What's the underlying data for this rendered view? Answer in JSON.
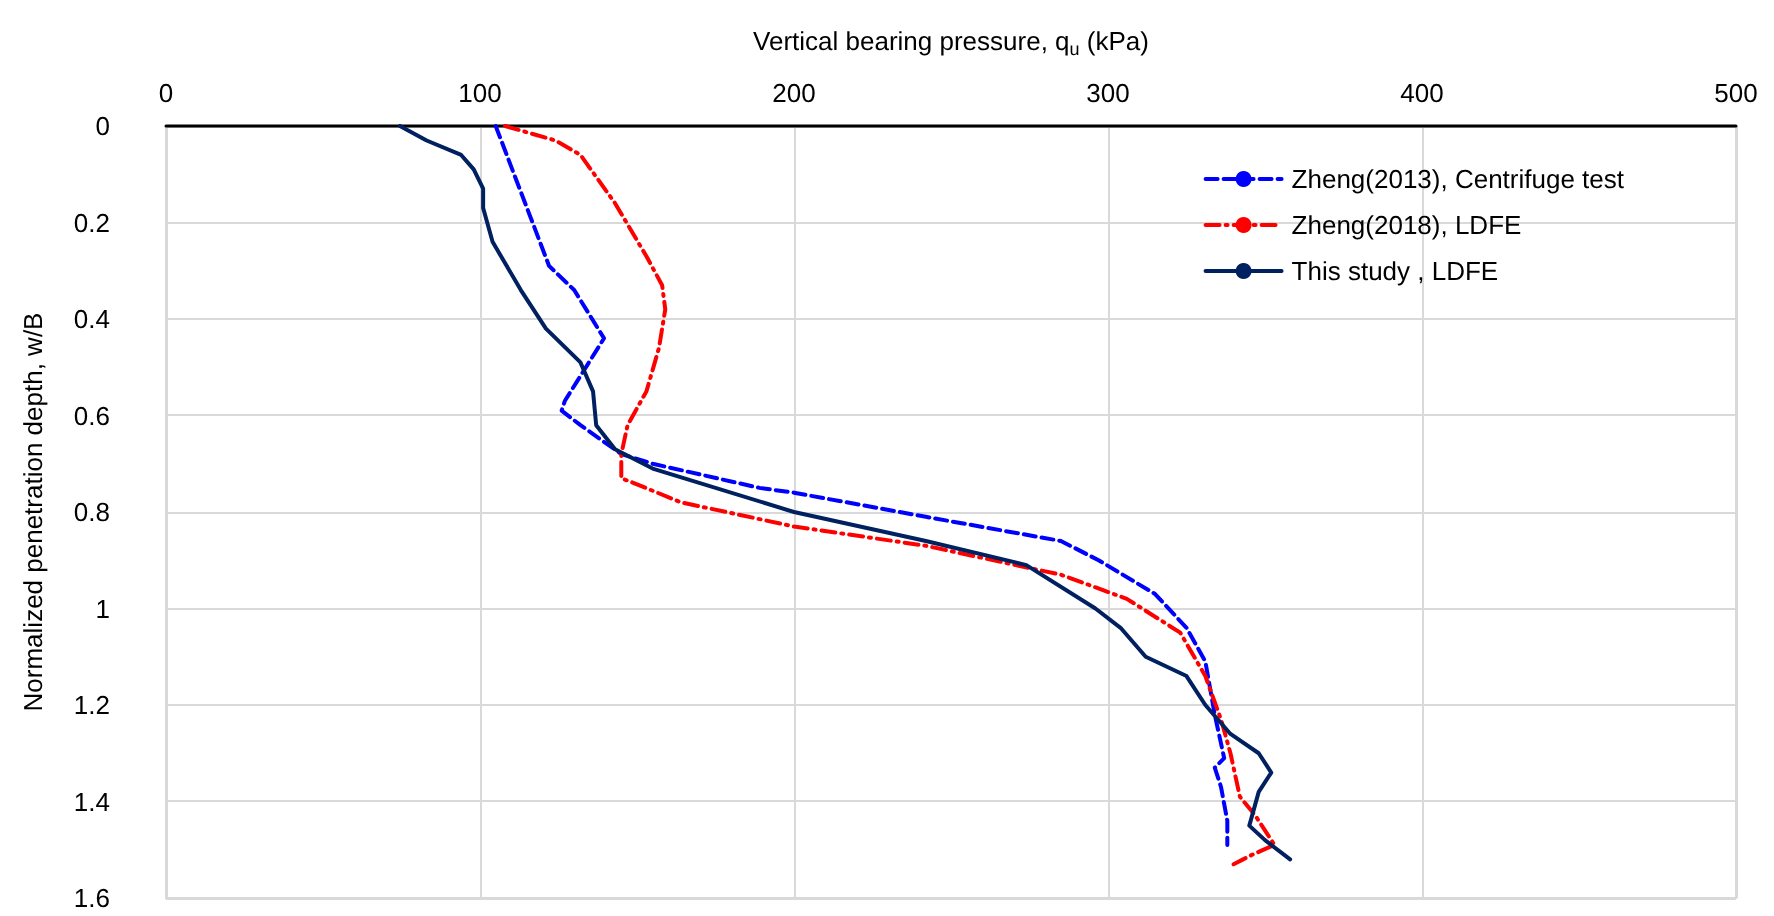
{
  "chart_data": {
    "type": "line",
    "xlabel": "Vertical bearing pressure, q$_{u}$ (kPa)",
    "ylabel": "Normalized penetration depth, w/B",
    "xlim": [
      0,
      500
    ],
    "xticks": [
      0,
      100,
      200,
      300,
      400,
      500
    ],
    "ylim": [
      1.6,
      0
    ],
    "yticks": [
      0,
      0.2,
      0.4,
      0.6,
      0.8,
      1,
      1.2,
      1.4,
      1.6
    ],
    "grid": true,
    "legend": "top right",
    "marker": "none",
    "series": [
      {
        "name": "Zheng(2013), Centrifuge test",
        "color": "#0000ff",
        "line_style": "dashed",
        "x": [
          105,
          122,
          130,
          139.5,
          127,
          126,
          132,
          145,
          155,
          189,
          200,
          242,
          285,
          297,
          315,
          325,
          331,
          334,
          337,
          334,
          336,
          338,
          338
        ],
        "values": [
          0,
          0.29,
          0.34,
          0.44,
          0.57,
          0.59,
          0.62,
          0.68,
          0.7,
          0.75,
          0.76,
          0.81,
          0.86,
          0.9,
          0.97,
          1.04,
          1.11,
          1.22,
          1.31,
          1.33,
          1.37,
          1.44,
          1.49
        ]
      },
      {
        "name": "Zheng(2018), LDFE",
        "color": "#ff0000",
        "line_style": "dashdot",
        "x": [
          108,
          124,
          132,
          143,
          153,
          158,
          159,
          157,
          153,
          147,
          145,
          145,
          149,
          164,
          200,
          242,
          285,
          306,
          323,
          331,
          336,
          339,
          342,
          347,
          353,
          346,
          340
        ],
        "values": [
          0,
          0.03,
          0.06,
          0.16,
          0.27,
          0.33,
          0.38,
          0.46,
          0.55,
          0.62,
          0.68,
          0.73,
          0.74,
          0.78,
          0.83,
          0.87,
          0.93,
          0.98,
          1.05,
          1.14,
          1.23,
          1.3,
          1.39,
          1.43,
          1.49,
          1.51,
          1.53
        ]
      },
      {
        "name": "This study , LDFE",
        "color": "#002060",
        "line_style": "solid",
        "x": [
          74.5,
          83,
          94,
          98,
          101,
          101,
          104,
          113,
          121,
          132,
          136,
          137,
          143,
          155,
          200,
          242,
          274,
          296,
          304,
          312,
          325,
          331,
          339,
          348,
          352,
          348,
          345,
          350,
          358
        ],
        "values": [
          0,
          0.03,
          0.06,
          0.09,
          0.13,
          0.17,
          0.24,
          0.34,
          0.42,
          0.49,
          0.55,
          0.62,
          0.67,
          0.71,
          0.8,
          0.86,
          0.91,
          1,
          1.04,
          1.1,
          1.14,
          1.2,
          1.26,
          1.3,
          1.34,
          1.38,
          1.45,
          1.48,
          1.52
        ]
      }
    ]
  }
}
